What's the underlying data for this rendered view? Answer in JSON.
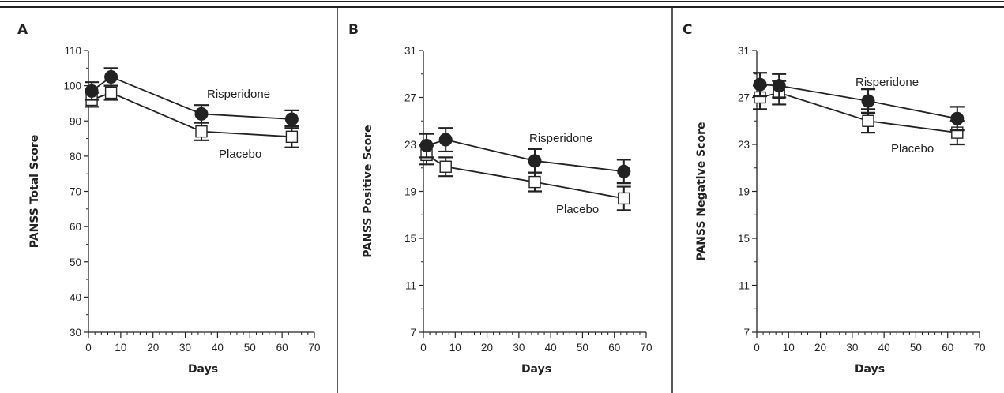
{
  "chart_data": [
    {
      "type": "line",
      "panel_label": "A",
      "xlabel": "Days",
      "ylabel": "PANSS Total Score",
      "xlim": [
        0,
        70
      ],
      "ylim": [
        30,
        110
      ],
      "x_ticks": [
        0,
        10,
        20,
        30,
        40,
        50,
        60,
        70
      ],
      "y_ticks": [
        30,
        40,
        50,
        60,
        70,
        80,
        90,
        100,
        110
      ],
      "grid": false,
      "error_bars": true,
      "series": [
        {
          "name": "Risperidone",
          "marker": "filled-circle",
          "x": [
            1,
            7,
            35,
            63
          ],
          "y": [
            98.5,
            102.5,
            92,
            90.5
          ],
          "err": [
            2.5,
            2.5,
            2.5,
            2.5
          ]
        },
        {
          "name": "Placebo",
          "marker": "open-square",
          "x": [
            1,
            7,
            35,
            63
          ],
          "y": [
            96,
            98,
            87,
            85.5
          ],
          "err": [
            2,
            2,
            2.5,
            3
          ]
        }
      ]
    },
    {
      "type": "line",
      "panel_label": "B",
      "xlabel": "Days",
      "ylabel": "PANSS Positive Score",
      "xlim": [
        0,
        70
      ],
      "ylim": [
        7,
        31
      ],
      "x_ticks": [
        0,
        10,
        20,
        30,
        40,
        50,
        60,
        70
      ],
      "y_ticks": [
        7,
        11,
        15,
        19,
        23,
        27,
        31
      ],
      "grid": false,
      "error_bars": true,
      "series": [
        {
          "name": "Risperidone",
          "marker": "filled-circle",
          "x": [
            1,
            7,
            35,
            63
          ],
          "y": [
            22.9,
            23.4,
            21.6,
            20.7
          ],
          "err": [
            1.0,
            1.0,
            1.0,
            1.0
          ]
        },
        {
          "name": "Placebo",
          "marker": "open-square",
          "x": [
            1,
            7,
            35,
            63
          ],
          "y": [
            22.1,
            21.1,
            19.8,
            18.4
          ],
          "err": [
            0.8,
            0.8,
            0.8,
            1.0
          ]
        }
      ]
    },
    {
      "type": "line",
      "panel_label": "C",
      "xlabel": "Days",
      "ylabel": "PANSS Negative Score",
      "xlim": [
        0,
        70
      ],
      "ylim": [
        7,
        31
      ],
      "x_ticks": [
        0,
        10,
        20,
        30,
        40,
        50,
        60,
        70
      ],
      "y_ticks": [
        7,
        11,
        15,
        19,
        23,
        27,
        31
      ],
      "grid": false,
      "error_bars": true,
      "series": [
        {
          "name": "Risperidone",
          "marker": "filled-circle",
          "x": [
            1,
            7,
            35,
            63
          ],
          "y": [
            28.1,
            28.0,
            26.7,
            25.2
          ],
          "err": [
            1.0,
            1.0,
            1.0,
            1.0
          ]
        },
        {
          "name": "Placebo",
          "marker": "open-square",
          "x": [
            1,
            7,
            35,
            63
          ],
          "y": [
            27.0,
            27.4,
            25.0,
            24.0
          ],
          "err": [
            1.0,
            1.0,
            1.0,
            1.0
          ]
        }
      ]
    }
  ],
  "style": {
    "ink": "#222222",
    "marker_fill_dark": "#222222",
    "marker_fill_open": "#ffffff",
    "background": "#ffffff"
  }
}
